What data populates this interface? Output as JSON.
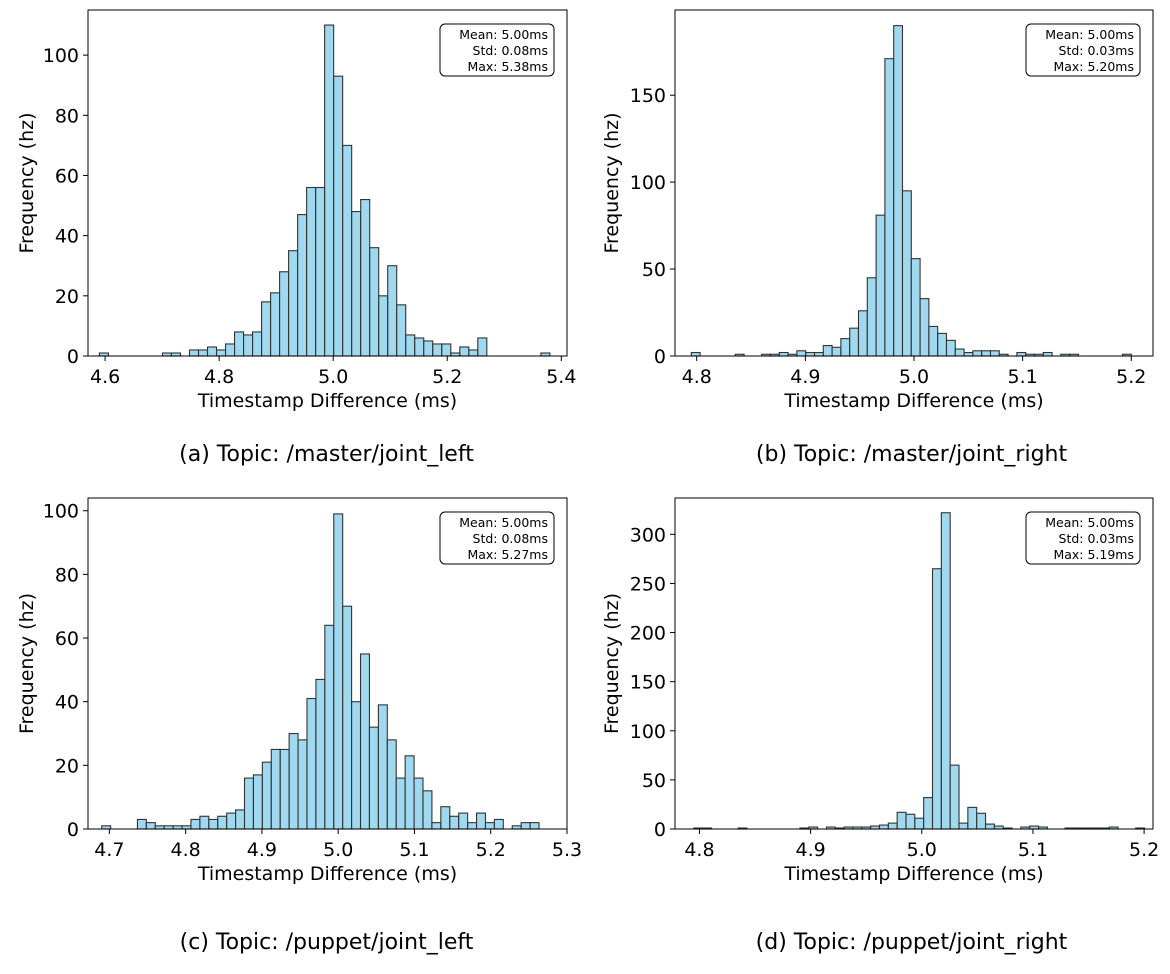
{
  "chart_data": [
    {
      "type": "histogram",
      "caption": "(a) Topic: /master/joint_left",
      "xlabel": "Timestamp Difference (ms)",
      "ylabel": "Frequency (hz)",
      "xlim": [
        4.57,
        5.41
      ],
      "ylim": [
        0,
        115
      ],
      "xticks": [
        4.6,
        4.8,
        5.0,
        5.2,
        5.4
      ],
      "xtick_labels": [
        "4.6",
        "4.8",
        "5.0",
        "5.2",
        "5.4"
      ],
      "yticks": [
        0,
        20,
        40,
        60,
        80,
        100
      ],
      "bin_start": 4.59,
      "bin_width": 0.0158,
      "counts": [
        1,
        0,
        0,
        0,
        0,
        0,
        0,
        1,
        1,
        0,
        2,
        2,
        3,
        2,
        4,
        8,
        7,
        8,
        18,
        21,
        28,
        35,
        47,
        56,
        56,
        110,
        93,
        70,
        48,
        52,
        36,
        20,
        30,
        17,
        7,
        6,
        5,
        4,
        4,
        1,
        3,
        2,
        6,
        0,
        0,
        0,
        0,
        0,
        0,
        1
      ],
      "stats": {
        "mean": "Mean: 5.00ms",
        "std": "Std: 0.08ms",
        "max": "Max: 5.38ms"
      }
    },
    {
      "type": "histogram",
      "caption": "(b) Topic: /master/joint_right",
      "xlabel": "Timestamp Difference (ms)",
      "ylabel": "Frequency (hz)",
      "xlim": [
        4.78,
        5.22
      ],
      "ylim": [
        0,
        199
      ],
      "xticks": [
        4.8,
        4.9,
        5.0,
        5.1,
        5.2
      ],
      "xtick_labels": [
        "4.8",
        "4.9",
        "5.0",
        "5.1",
        "5.2"
      ],
      "yticks": [
        0,
        50,
        100,
        150
      ],
      "bin_start": 4.795,
      "bin_width": 0.0081,
      "counts": [
        2,
        0,
        0,
        0,
        0,
        1,
        0,
        0,
        1,
        1,
        2,
        1,
        3,
        2,
        2,
        6,
        5,
        10,
        16,
        26,
        45,
        81,
        171,
        190,
        95,
        56,
        33,
        17,
        13,
        9,
        4,
        2,
        3,
        3,
        3,
        1,
        0,
        2,
        1,
        1,
        2,
        0,
        1,
        1,
        0,
        0,
        0,
        0,
        0,
        1
      ],
      "stats": {
        "mean": "Mean: 5.00ms",
        "std": "Std: 0.03ms",
        "max": "Max: 5.20ms"
      }
    },
    {
      "type": "histogram",
      "caption": "(c) Topic: /puppet/joint_left",
      "xlabel": "Timestamp Difference (ms)",
      "ylabel": "Frequency (hz)",
      "xlim": [
        4.672,
        5.3
      ],
      "ylim": [
        0,
        104
      ],
      "xticks": [
        4.7,
        4.8,
        4.9,
        5.0,
        5.1,
        5.2,
        5.3
      ],
      "xtick_labels": [
        "4.7",
        "4.8",
        "4.9",
        "5.0",
        "5.1",
        "5.2",
        "5.3"
      ],
      "yticks": [
        0,
        20,
        40,
        60,
        80,
        100
      ],
      "bin_start": 4.69,
      "bin_width": 0.0117,
      "counts": [
        1,
        0,
        0,
        0,
        3,
        2,
        1,
        1,
        1,
        1,
        3,
        4,
        3,
        4,
        5,
        6,
        16,
        17,
        21,
        25,
        25,
        30,
        28,
        41,
        47,
        64,
        99,
        70,
        40,
        55,
        32,
        39,
        28,
        16,
        23,
        16,
        12,
        2,
        7,
        4,
        5,
        2,
        5,
        2,
        3,
        0,
        1,
        2,
        2,
        0
      ],
      "stats": {
        "mean": "Mean: 5.00ms",
        "std": "Std: 0.08ms",
        "max": "Max: 5.27ms"
      }
    },
    {
      "type": "histogram",
      "caption": "(d) Topic: /puppet/joint_right",
      "xlabel": "Timestamp Difference (ms)",
      "ylabel": "Frequency (hz)",
      "xlim": [
        4.778,
        5.208
      ],
      "ylim": [
        0,
        337
      ],
      "xticks": [
        4.8,
        4.9,
        5.0,
        5.1,
        5.2
      ],
      "xtick_labels": [
        "4.8",
        "4.9",
        "5.0",
        "5.1",
        "5.2"
      ],
      "yticks": [
        0,
        50,
        100,
        150,
        200,
        250,
        300
      ],
      "bin_start": 4.795,
      "bin_width": 0.00795,
      "counts": [
        1,
        1,
        0,
        0,
        0,
        1,
        0,
        0,
        0,
        0,
        0,
        0,
        1,
        2,
        0,
        2,
        1,
        2,
        2,
        2,
        3,
        4,
        6,
        17,
        15,
        11,
        32,
        265,
        322,
        65,
        6,
        22,
        16,
        5,
        3,
        1,
        0,
        2,
        3,
        2,
        0,
        0,
        1,
        1,
        1,
        1,
        1,
        2,
        0,
        0,
        1
      ],
      "stats": {
        "mean": "Mean: 5.00ms",
        "std": "Std: 0.03ms",
        "max": "Max: 5.19ms"
      }
    }
  ],
  "colors": {
    "bar_fill": "#87ceeb",
    "bar_edge": "#333333"
  }
}
